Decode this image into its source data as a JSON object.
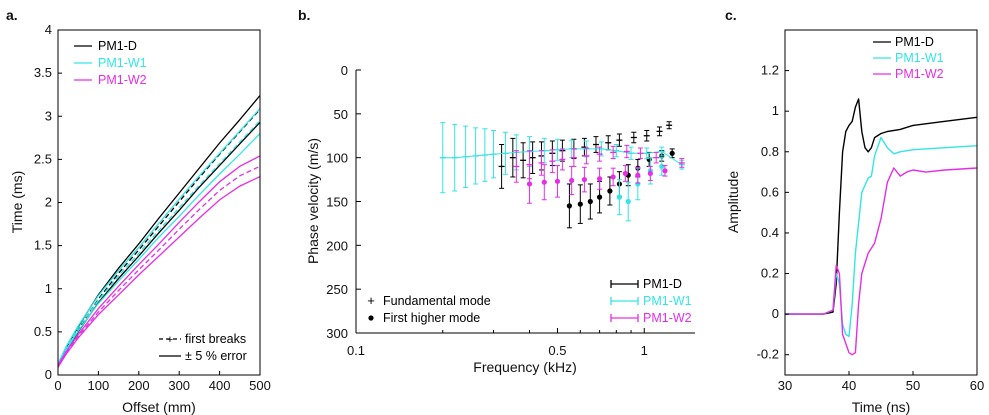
{
  "colors": {
    "PM1-D": "#000000",
    "PM1-W1": "#33e5e5",
    "PM1-W2": "#e62ee6"
  },
  "chart_data": [
    {
      "id": "a",
      "panel_label": "a.",
      "type": "line",
      "xlabel": "Offset (mm)",
      "ylabel": "Time (ms)",
      "xlim": [
        0,
        500
      ],
      "ylim": [
        0,
        4
      ],
      "xticks": [
        "0",
        "100",
        "200",
        "300",
        "400",
        "500"
      ],
      "yticks": [
        "0",
        "0.5",
        "1",
        "1.5",
        "2",
        "2.5",
        "3",
        "3.5",
        "4"
      ],
      "legend": [
        "PM1-D",
        "PM1-W1",
        "PM1-W2"
      ],
      "annotations": [
        "first breaks",
        "± 5 % error"
      ],
      "x": [
        0,
        20,
        50,
        100,
        150,
        200,
        250,
        300,
        350,
        400,
        450,
        500
      ],
      "series": [
        {
          "name": "PM1-D",
          "style": "dashed",
          "values": [
            0.1,
            0.3,
            0.53,
            0.88,
            1.18,
            1.45,
            1.73,
            2.01,
            2.29,
            2.56,
            2.82,
            3.08
          ]
        },
        {
          "name": "PM1-D",
          "style": "solid",
          "values": [
            0.12,
            0.32,
            0.56,
            0.93,
            1.24,
            1.52,
            1.82,
            2.11,
            2.4,
            2.69,
            2.96,
            3.24
          ]
        },
        {
          "name": "PM1-D",
          "style": "solid",
          "values": [
            0.09,
            0.28,
            0.5,
            0.84,
            1.12,
            1.38,
            1.65,
            1.91,
            2.18,
            2.43,
            2.68,
            2.93
          ]
        },
        {
          "name": "PM1-W1",
          "style": "dashed",
          "values": [
            0.11,
            0.31,
            0.54,
            0.87,
            1.15,
            1.41,
            1.68,
            1.94,
            2.2,
            2.45,
            2.7,
            2.95
          ]
        },
        {
          "name": "PM1-W1",
          "style": "solid",
          "values": [
            0.13,
            0.33,
            0.57,
            0.92,
            1.21,
            1.48,
            1.76,
            2.04,
            2.31,
            2.57,
            2.83,
            3.09
          ]
        },
        {
          "name": "PM1-W1",
          "style": "solid",
          "values": [
            0.1,
            0.29,
            0.51,
            0.83,
            1.09,
            1.34,
            1.6,
            1.84,
            2.09,
            2.33,
            2.56,
            2.8
          ]
        },
        {
          "name": "PM1-W2",
          "style": "dashed",
          "values": [
            0.1,
            0.26,
            0.45,
            0.73,
            0.98,
            1.22,
            1.45,
            1.69,
            1.92,
            2.14,
            2.31,
            2.42
          ]
        },
        {
          "name": "PM1-W2",
          "style": "solid",
          "values": [
            0.11,
            0.27,
            0.47,
            0.77,
            1.03,
            1.28,
            1.52,
            1.77,
            2.01,
            2.24,
            2.42,
            2.54
          ]
        },
        {
          "name": "PM1-W2",
          "style": "solid",
          "values": [
            0.09,
            0.24,
            0.43,
            0.7,
            0.93,
            1.16,
            1.38,
            1.6,
            1.82,
            2.03,
            2.19,
            2.3
          ]
        }
      ]
    },
    {
      "id": "b",
      "panel_label": "b.",
      "type": "scatter",
      "xlabel": "Frequency (kHz)",
      "ylabel": "Phase velocity (m/s)",
      "xscale": "log",
      "xlim": [
        0.1,
        1.5
      ],
      "ylim": [
        300,
        0
      ],
      "xticks": [
        "0.1",
        "0.5",
        "1"
      ],
      "yticks": [
        "0",
        "50",
        "100",
        "150",
        "200",
        "250",
        "300"
      ],
      "legend": [
        "PM1-D",
        "PM1-W1",
        "PM1-W2"
      ],
      "mode_legend": [
        "Fundamental mode",
        "First higher mode"
      ],
      "series": [
        {
          "name": "PM1-D",
          "mode": "fundamental",
          "points": [
            [
              0.32,
              110,
              25
            ],
            [
              0.35,
              100,
              22
            ],
            [
              0.38,
              103,
              20
            ],
            [
              0.41,
              100,
              18
            ],
            [
              0.44,
              98,
              16
            ],
            [
              0.48,
              95,
              14
            ],
            [
              0.52,
              92,
              12
            ],
            [
              0.57,
              90,
              11
            ],
            [
              0.62,
              88,
              10
            ],
            [
              0.68,
              85,
              9
            ],
            [
              0.75,
              83,
              8
            ],
            [
              0.82,
              80,
              7
            ],
            [
              0.92,
              77,
              6
            ],
            [
              1.02,
              75,
              6
            ],
            [
              1.13,
              70,
              5
            ],
            [
              1.22,
              63,
              4
            ]
          ]
        },
        {
          "name": "PM1-D",
          "mode": "first higher",
          "points": [
            [
              0.55,
              155,
              25
            ],
            [
              0.6,
              153,
              22
            ],
            [
              0.65,
              150,
              20
            ],
            [
              0.7,
              145,
              18
            ],
            [
              0.76,
              138,
              16
            ],
            [
              0.82,
              130,
              14
            ],
            [
              0.88,
              120,
              12
            ],
            [
              0.95,
              112,
              10
            ],
            [
              1.04,
              102,
              8
            ],
            [
              1.15,
              98,
              6
            ],
            [
              1.25,
              95,
              5
            ]
          ]
        },
        {
          "name": "PM1-W1",
          "mode": "fundamental",
          "points": [
            [
              0.2,
              100,
              40
            ],
            [
              0.22,
              100,
              38
            ],
            [
              0.24,
              99,
              35
            ],
            [
              0.26,
              98,
              32
            ],
            [
              0.28,
              97,
              30
            ],
            [
              0.3,
              96,
              27
            ],
            [
              0.33,
              95,
              24
            ],
            [
              0.36,
              94,
              20
            ],
            [
              0.4,
              93,
              17
            ],
            [
              0.45,
              92,
              14
            ],
            [
              0.5,
              91,
              12
            ],
            [
              0.56,
              90,
              10
            ],
            [
              0.63,
              90,
              9
            ],
            [
              0.71,
              90,
              8
            ],
            [
              0.8,
              92,
              7
            ],
            [
              0.9,
              95,
              7
            ],
            [
              1.02,
              95,
              6
            ],
            [
              1.15,
              93,
              5
            ],
            [
              1.35,
              108,
              5
            ]
          ]
        },
        {
          "name": "PM1-W1",
          "mode": "first higher",
          "points": [
            [
              0.82,
              145,
              20
            ],
            [
              0.88,
              150,
              22
            ],
            [
              0.95,
              130,
              18
            ],
            [
              1.05,
              115,
              15
            ],
            [
              1.15,
              110,
              10
            ]
          ]
        },
        {
          "name": "PM1-W2",
          "mode": "fundamental",
          "points": [
            [
              0.36,
              110,
              18
            ],
            [
              0.4,
              108,
              16
            ],
            [
              0.44,
              106,
              14
            ],
            [
              0.48,
              104,
              13
            ],
            [
              0.52,
              102,
              12
            ],
            [
              0.57,
              100,
              10
            ],
            [
              0.63,
              98,
              9
            ],
            [
              0.7,
              96,
              8
            ],
            [
              0.78,
              94,
              7
            ],
            [
              0.87,
              93,
              7
            ],
            [
              0.97,
              95,
              6
            ],
            [
              1.1,
              100,
              6
            ],
            [
              1.35,
              106,
              5
            ]
          ]
        },
        {
          "name": "PM1-W2",
          "mode": "first higher",
          "points": [
            [
              0.4,
              130,
              22
            ],
            [
              0.45,
              128,
              20
            ],
            [
              0.5,
              127,
              18
            ],
            [
              0.56,
              126,
              16
            ],
            [
              0.62,
              125,
              14
            ],
            [
              0.7,
              124,
              12
            ],
            [
              0.78,
              122,
              10
            ],
            [
              0.86,
              118,
              9
            ],
            [
              0.95,
              120,
              9
            ],
            [
              1.05,
              118,
              8
            ],
            [
              1.18,
              115,
              6
            ]
          ]
        }
      ]
    },
    {
      "id": "c",
      "panel_label": "c.",
      "type": "line",
      "xlabel": "Time (ns)",
      "ylabel": "Amplitude",
      "xlim": [
        30,
        60
      ],
      "ylim": [
        -0.3,
        1.4
      ],
      "xticks": [
        "30",
        "40",
        "50",
        "60"
      ],
      "yticks": [
        "-0.2",
        "0",
        "0.2",
        "0.4",
        "0.6",
        "0.8",
        "1",
        "1.2"
      ],
      "legend": [
        "PM1-D",
        "PM1-W1",
        "PM1-W2"
      ],
      "series": [
        {
          "name": "PM1-D",
          "x": [
            30,
            36,
            37.5,
            38,
            38.5,
            39,
            39.5,
            40,
            40.5,
            41,
            41.5,
            42,
            42.5,
            43,
            43.5,
            44,
            45,
            46,
            48,
            50,
            55,
            60
          ],
          "values": [
            0,
            0,
            0.01,
            0.15,
            0.5,
            0.8,
            0.9,
            0.93,
            0.95,
            1.02,
            1.06,
            0.9,
            0.82,
            0.8,
            0.82,
            0.87,
            0.89,
            0.9,
            0.91,
            0.93,
            0.95,
            0.97
          ]
        },
        {
          "name": "PM1-W1",
          "x": [
            30,
            36,
            37.5,
            38,
            38.5,
            39,
            39.5,
            40,
            40.5,
            41,
            41.5,
            42,
            43,
            43.5,
            44,
            45,
            46,
            47,
            48,
            50,
            55,
            60
          ],
          "values": [
            0,
            0,
            0.02,
            0.2,
            0.15,
            -0.05,
            -0.1,
            -0.11,
            0.05,
            0.3,
            0.45,
            0.6,
            0.67,
            0.68,
            0.78,
            0.87,
            0.82,
            0.79,
            0.8,
            0.81,
            0.82,
            0.83
          ]
        },
        {
          "name": "PM1-W2",
          "x": [
            30,
            36,
            37.5,
            38,
            38.5,
            39,
            40,
            40.5,
            41,
            41.5,
            42,
            43,
            44,
            45,
            46,
            47,
            48,
            49,
            50,
            52,
            55,
            60
          ],
          "values": [
            0,
            0,
            0.02,
            0.24,
            0.2,
            -0.1,
            -0.19,
            -0.2,
            -0.19,
            0.05,
            0.2,
            0.3,
            0.35,
            0.47,
            0.65,
            0.72,
            0.68,
            0.7,
            0.71,
            0.7,
            0.71,
            0.72
          ]
        }
      ]
    }
  ]
}
